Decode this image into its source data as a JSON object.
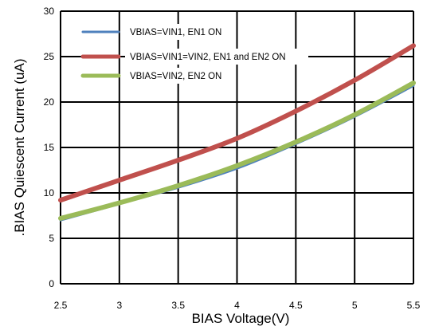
{
  "chart_data": {
    "type": "line",
    "title": "",
    "xlabel": "BIAS Voltage(V)",
    "ylabel": ".BIAS Quiescent Current (uA)",
    "xlim": [
      2.5,
      5.5
    ],
    "ylim": [
      0,
      30
    ],
    "x_ticks": [
      "2.5",
      "3",
      "3.5",
      "4",
      "4.5",
      "5",
      "5.5"
    ],
    "y_ticks": [
      "0",
      "5",
      "10",
      "15",
      "20",
      "25",
      "30"
    ],
    "grid": true,
    "legend_position": "top-left",
    "series": [
      {
        "name": "VBIAS=VIN1, EN1 ON",
        "color": "#4f81bd",
        "x": [
          2.5,
          3.0,
          3.5,
          4.0,
          4.5,
          5.0,
          5.5
        ],
        "y": [
          7.0,
          8.8,
          10.6,
          12.7,
          15.4,
          18.4,
          21.8
        ]
      },
      {
        "name": "VBIAS=VIN1=VIN2, EN1 and EN2 ON",
        "color": "#c0504d",
        "x": [
          2.5,
          3.0,
          3.5,
          4.0,
          4.5,
          5.0,
          5.5
        ],
        "y": [
          9.2,
          11.4,
          13.6,
          16.0,
          19.0,
          22.4,
          26.2
        ]
      },
      {
        "name": "VBIAS=VIN2, EN2 ON",
        "color": "#9bbb59",
        "x": [
          2.5,
          3.0,
          3.5,
          4.0,
          4.5,
          5.0,
          5.5
        ],
        "y": [
          7.2,
          8.9,
          10.8,
          13.0,
          15.6,
          18.6,
          22.1
        ]
      }
    ]
  }
}
